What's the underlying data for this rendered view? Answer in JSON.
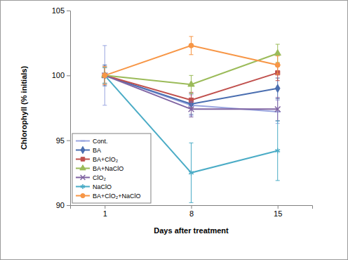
{
  "chart_data": {
    "type": "line",
    "x_label": "Days after treatment",
    "y_label": "Chlorophyll (% initials)",
    "categories": [
      "1",
      "8",
      "15"
    ],
    "ylim": [
      90,
      105
    ],
    "yticks": [
      90,
      95,
      100,
      105
    ],
    "grid": false,
    "legend": "lower left",
    "series": [
      {
        "name": "Cont.",
        "color": "#9aa6e0",
        "marker": "dash",
        "values": [
          100,
          97.7,
          97.2
        ],
        "errors": [
          2.3,
          0.8,
          0.9
        ]
      },
      {
        "name": "BA",
        "color": "#4a6eb0",
        "marker": "diamond",
        "values": [
          100,
          97.8,
          99.0
        ],
        "errors": [
          0.8,
          0.8,
          0.8
        ]
      },
      {
        "name": "BA+ClO₂",
        "color": "#c0504d",
        "marker": "square",
        "values": [
          100,
          98.1,
          100.2
        ],
        "errors": [
          0.6,
          0.6,
          0.6
        ]
      },
      {
        "name": "BA+NaClO",
        "color": "#9bbb59",
        "marker": "triangle",
        "values": [
          100,
          99.3,
          101.7
        ],
        "errors": [
          0.6,
          0.7,
          0.7
        ]
      },
      {
        "name": "ClO₂",
        "color": "#8064a2",
        "marker": "x",
        "values": [
          100,
          97.4,
          97.4
        ],
        "errors": [
          0.7,
          0.6,
          0.9
        ]
      },
      {
        "name": "NaClO",
        "color": "#4bacc6",
        "marker": "asterisk",
        "values": [
          100,
          92.5,
          94.2
        ],
        "errors": [
          0.6,
          2.3,
          2.3
        ]
      },
      {
        "name": "BA+ClO₂+NaClO",
        "color": "#f79646",
        "marker": "circle",
        "values": [
          100,
          102.3,
          100.8
        ],
        "errors": [
          0.7,
          0.7,
          0.7
        ]
      }
    ]
  }
}
